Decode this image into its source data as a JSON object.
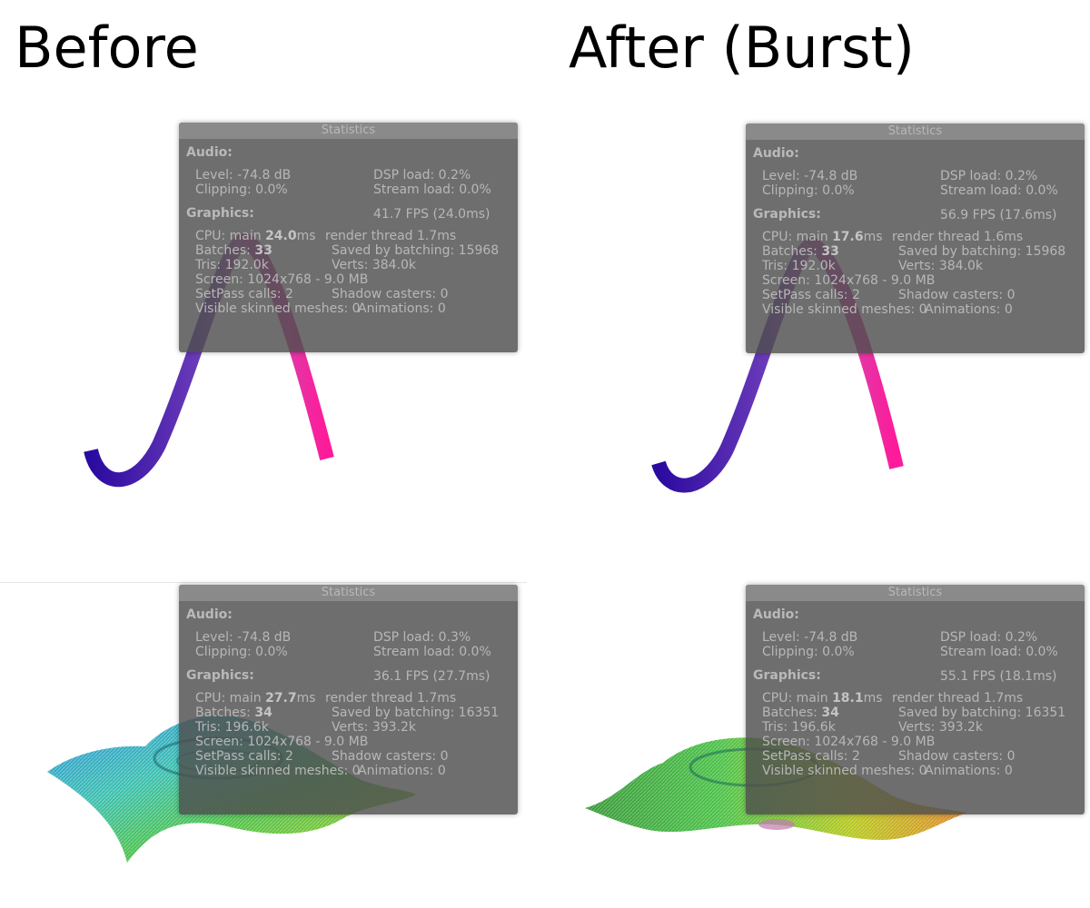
{
  "headings": {
    "before": "Before",
    "after": "After (Burst)"
  },
  "labels": {
    "title": "Statistics",
    "audio": "Audio:",
    "graphics": "Graphics:",
    "level": "Level: ",
    "dsp": "DSP load: ",
    "clipping": "Clipping: ",
    "stream": "Stream load: ",
    "cpu_main": "CPU: main ",
    "ms": "ms",
    "render_thread": "render thread ",
    "batches": "Batches: ",
    "saved": "Saved by batching: ",
    "tris": "Tris: ",
    "verts": "Verts: ",
    "screen": "Screen: ",
    "setpass": "SetPass calls: ",
    "shadow": "Shadow casters: ",
    "skinned": "Visible skinned meshes: ",
    "animations": "Animations: "
  },
  "panels": [
    {
      "level": "-74.8 dB",
      "dsp": "0.2%",
      "clipping": "0.0%",
      "stream": "0.0%",
      "fps": "41.7 FPS (24.0ms)",
      "cpu_main": "24.0",
      "render_thread": "1.7ms",
      "batches": "33",
      "saved": "15968",
      "tris": "192.0k",
      "verts": "384.0k",
      "screen": "1024x768 - 9.0 MB",
      "setpass": "2",
      "shadow": "0",
      "skinned": "0",
      "animations": "0"
    },
    {
      "level": "-74.8 dB",
      "dsp": "0.2%",
      "clipping": "0.0%",
      "stream": "0.0%",
      "fps": "56.9 FPS (17.6ms)",
      "cpu_main": "17.6",
      "render_thread": "1.6ms",
      "batches": "33",
      "saved": "15968",
      "tris": "192.0k",
      "verts": "384.0k",
      "screen": "1024x768 - 9.0 MB",
      "setpass": "2",
      "shadow": "0",
      "skinned": "0",
      "animations": "0"
    },
    {
      "level": "-74.8 dB",
      "dsp": "0.3%",
      "clipping": "0.0%",
      "stream": "0.0%",
      "fps": "36.1 FPS (27.7ms)",
      "cpu_main": "27.7",
      "render_thread": "1.7ms",
      "batches": "34",
      "saved": "16351",
      "tris": "196.6k",
      "verts": "393.2k",
      "screen": "1024x768 - 9.0 MB",
      "setpass": "2",
      "shadow": "0",
      "skinned": "0",
      "animations": "0"
    },
    {
      "level": "-74.8 dB",
      "dsp": "0.2%",
      "clipping": "0.0%",
      "stream": "0.0%",
      "fps": "55.1 FPS (18.1ms)",
      "cpu_main": "18.1",
      "render_thread": "1.7ms",
      "batches": "34",
      "saved": "16351",
      "tris": "196.6k",
      "verts": "393.2k",
      "screen": "1024x768 - 9.0 MB",
      "setpass": "2",
      "shadow": "0",
      "skinned": "0",
      "animations": "0"
    }
  ],
  "colors": {
    "ribbon_start": "#2a0aa0",
    "ribbon_mid": "#6a3ab8",
    "ribbon_end": "#ff1a9a",
    "surface_blue": "#2f8fe0",
    "surface_green": "#4cc24a",
    "surface_yellow": "#b8c820",
    "surface_orange": "#e08a2a"
  }
}
